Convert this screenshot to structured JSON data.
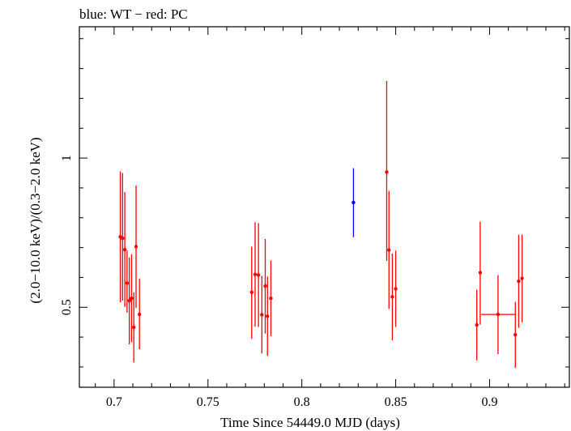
{
  "chart_data": {
    "type": "scatter",
    "title": "blue: WT − red: PC",
    "xlabel": "Time Since 54449.0 MJD (days)",
    "ylabel": "(2.0−10.0 keV)/(0.3−2.0 keV)",
    "xlim": [
      0.6815,
      0.9425
    ],
    "ylim": [
      0.232,
      1.44
    ],
    "x_ticks": [
      0.7,
      0.75,
      0.8,
      0.85,
      0.9
    ],
    "x_tick_labels": [
      "0.7",
      "0.75",
      "0.8",
      "0.85",
      "0.9"
    ],
    "y_ticks": [
      0.5,
      1
    ],
    "y_tick_labels": [
      "0.5",
      "1"
    ],
    "series": [
      {
        "color": "#0000ff",
        "points": [
          {
            "x": 0.8275,
            "y": 0.851,
            "yerr": [
              0.735,
              0.966
            ]
          }
        ]
      },
      {
        "color": "#ff0000",
        "points": [
          {
            "x": 0.7033,
            "y": 0.736,
            "yerr": [
              0.517,
              0.955
            ]
          },
          {
            "x": 0.7045,
            "y": 0.731,
            "yerr": [
              0.522,
              0.95
            ]
          },
          {
            "x": 0.7057,
            "y": 0.693,
            "yerr": [
              0.501,
              0.886
            ]
          },
          {
            "x": 0.7069,
            "y": 0.581,
            "yerr": [
              0.482,
              0.69
            ]
          },
          {
            "x": 0.7081,
            "y": 0.522,
            "yerr": [
              0.376,
              0.667
            ]
          },
          {
            "x": 0.7093,
            "y": 0.53,
            "yerr": [
              0.383,
              0.678
            ]
          },
          {
            "x": 0.7105,
            "y": 0.433,
            "yerr": [
              0.315,
              0.55
            ]
          },
          {
            "x": 0.7117,
            "y": 0.703,
            "yerr": [
              0.498,
              0.908
            ]
          },
          {
            "x": 0.7135,
            "y": 0.476,
            "yerr": [
              0.359,
              0.596
            ]
          },
          {
            "x": 0.7733,
            "y": 0.55,
            "yerr": [
              0.394,
              0.703
            ]
          },
          {
            "x": 0.7751,
            "y": 0.61,
            "yerr": [
              0.435,
              0.785
            ]
          },
          {
            "x": 0.7769,
            "y": 0.608,
            "yerr": [
              0.434,
              0.782
            ]
          },
          {
            "x": 0.7787,
            "y": 0.475,
            "yerr": [
              0.345,
              0.605
            ]
          },
          {
            "x": 0.7805,
            "y": 0.571,
            "yerr": [
              0.412,
              0.729
            ]
          },
          {
            "x": 0.7817,
            "y": 0.47,
            "yerr": [
              0.337,
              0.603
            ]
          },
          {
            "x": 0.7835,
            "y": 0.53,
            "yerr": [
              0.403,
              0.657
            ]
          },
          {
            "x": 0.8452,
            "y": 0.953,
            "yerr": [
              0.655,
              1.258
            ]
          },
          {
            "x": 0.8464,
            "y": 0.692,
            "yerr": [
              0.495,
              0.89
            ]
          },
          {
            "x": 0.8482,
            "y": 0.535,
            "yerr": [
              0.389,
              0.68
            ]
          },
          {
            "x": 0.85,
            "y": 0.562,
            "yerr": [
              0.434,
              0.69
            ]
          },
          {
            "x": 0.8932,
            "y": 0.441,
            "yerr": [
              0.322,
              0.559
            ]
          },
          {
            "x": 0.895,
            "y": 0.616,
            "yerr": [
              0.442,
              0.787
            ]
          },
          {
            "x": 0.9045,
            "y": 0.476,
            "xerr": [
              0.8955,
              0.9135
            ],
            "yerr": [
              0.343,
              0.608
            ]
          },
          {
            "x": 0.9137,
            "y": 0.408,
            "yerr": [
              0.297,
              0.518
            ]
          },
          {
            "x": 0.9155,
            "y": 0.587,
            "yerr": [
              0.431,
              0.743
            ]
          },
          {
            "x": 0.9173,
            "y": 0.597,
            "yerr": [
              0.45,
              0.744
            ]
          }
        ]
      }
    ]
  }
}
